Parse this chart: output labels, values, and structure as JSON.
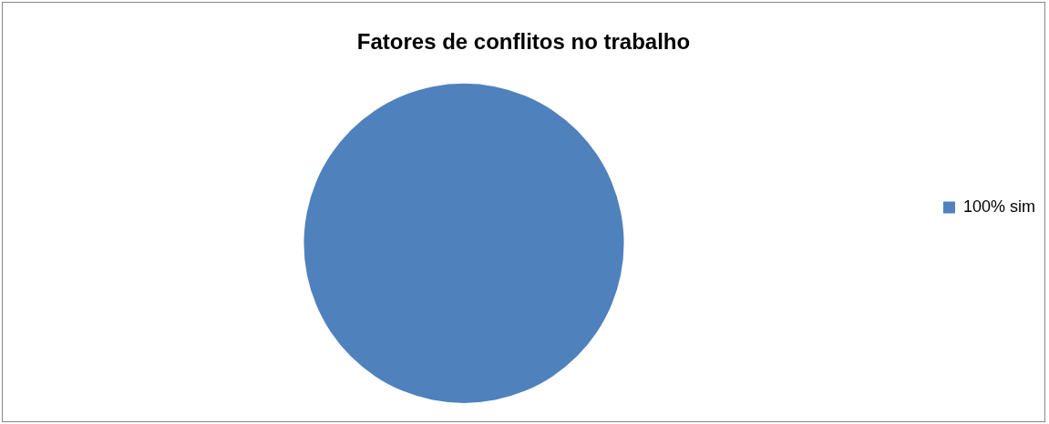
{
  "chart_data": {
    "type": "pie",
    "title": "Fatores de conflitos no trabalho",
    "categories": [
      "100% sim"
    ],
    "values": [
      100
    ],
    "colors": [
      "#4f81bd"
    ],
    "legend": "right"
  }
}
